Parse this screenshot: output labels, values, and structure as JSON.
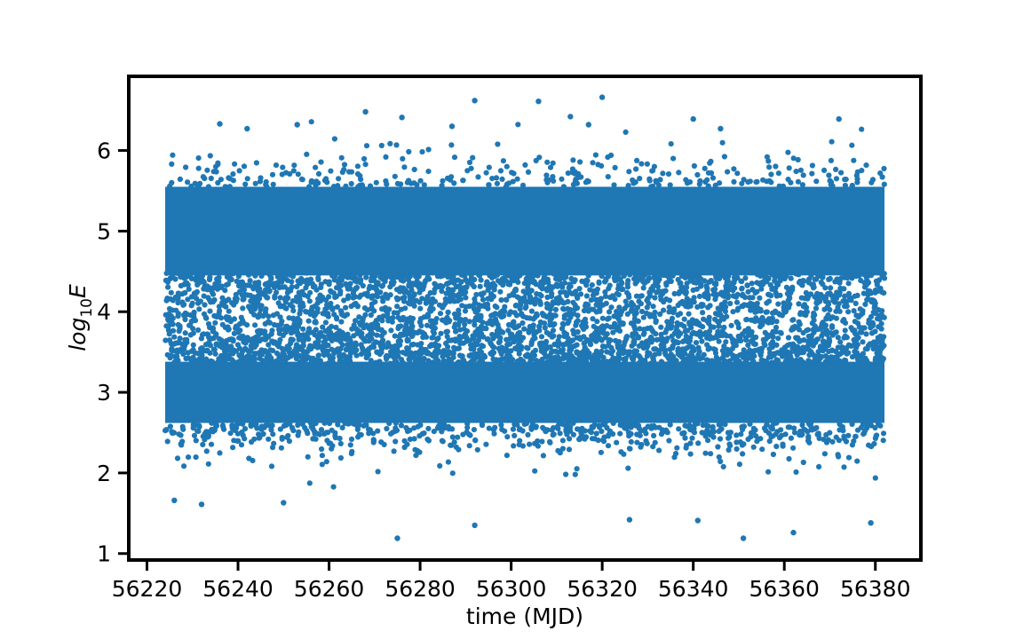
{
  "chart_data": {
    "type": "scatter",
    "title": "",
    "xlabel": "time (MJD)",
    "ylabel": {
      "base": "log",
      "sub": "10",
      "var": "E"
    },
    "xlim": [
      56216,
      56390
    ],
    "ylim": [
      0.92,
      6.92
    ],
    "x_ticks": [
      56220,
      56240,
      56260,
      56280,
      56300,
      56320,
      56340,
      56360,
      56380
    ],
    "y_ticks": [
      1,
      2,
      3,
      4,
      5,
      6
    ],
    "grid": false,
    "legend": "none",
    "marker_color": "#1f77b4",
    "marker_shape": "circle",
    "x_range_of_points": [
      56224,
      56382
    ],
    "clusters": [
      {
        "name": "lower band",
        "y_center": 3.0,
        "y_spread": 0.4,
        "density": "very high"
      },
      {
        "name": "upper band",
        "y_center": 5.0,
        "y_spread": 0.45,
        "density": "high"
      }
    ],
    "outliers": [
      {
        "x": 56275,
        "y": 1.19
      },
      {
        "x": 56292,
        "y": 1.35
      },
      {
        "x": 56232,
        "y": 1.61
      },
      {
        "x": 56226,
        "y": 1.66
      },
      {
        "x": 56250,
        "y": 1.63
      },
      {
        "x": 56326,
        "y": 1.42
      },
      {
        "x": 56341,
        "y": 1.41
      },
      {
        "x": 56351,
        "y": 1.19
      },
      {
        "x": 56362,
        "y": 1.26
      },
      {
        "x": 56379,
        "y": 1.38
      },
      {
        "x": 56320,
        "y": 6.66
      },
      {
        "x": 56306,
        "y": 6.61
      },
      {
        "x": 56292,
        "y": 6.62
      },
      {
        "x": 56268,
        "y": 6.48
      },
      {
        "x": 56313,
        "y": 6.42
      },
      {
        "x": 56276,
        "y": 6.41
      },
      {
        "x": 56340,
        "y": 6.39
      },
      {
        "x": 56372,
        "y": 6.39
      },
      {
        "x": 56236,
        "y": 6.33
      },
      {
        "x": 56253,
        "y": 6.32
      },
      {
        "x": 56317,
        "y": 6.32
      },
      {
        "x": 56287,
        "y": 6.3
      },
      {
        "x": 56346,
        "y": 6.27
      },
      {
        "x": 56242,
        "y": 6.27
      }
    ]
  }
}
